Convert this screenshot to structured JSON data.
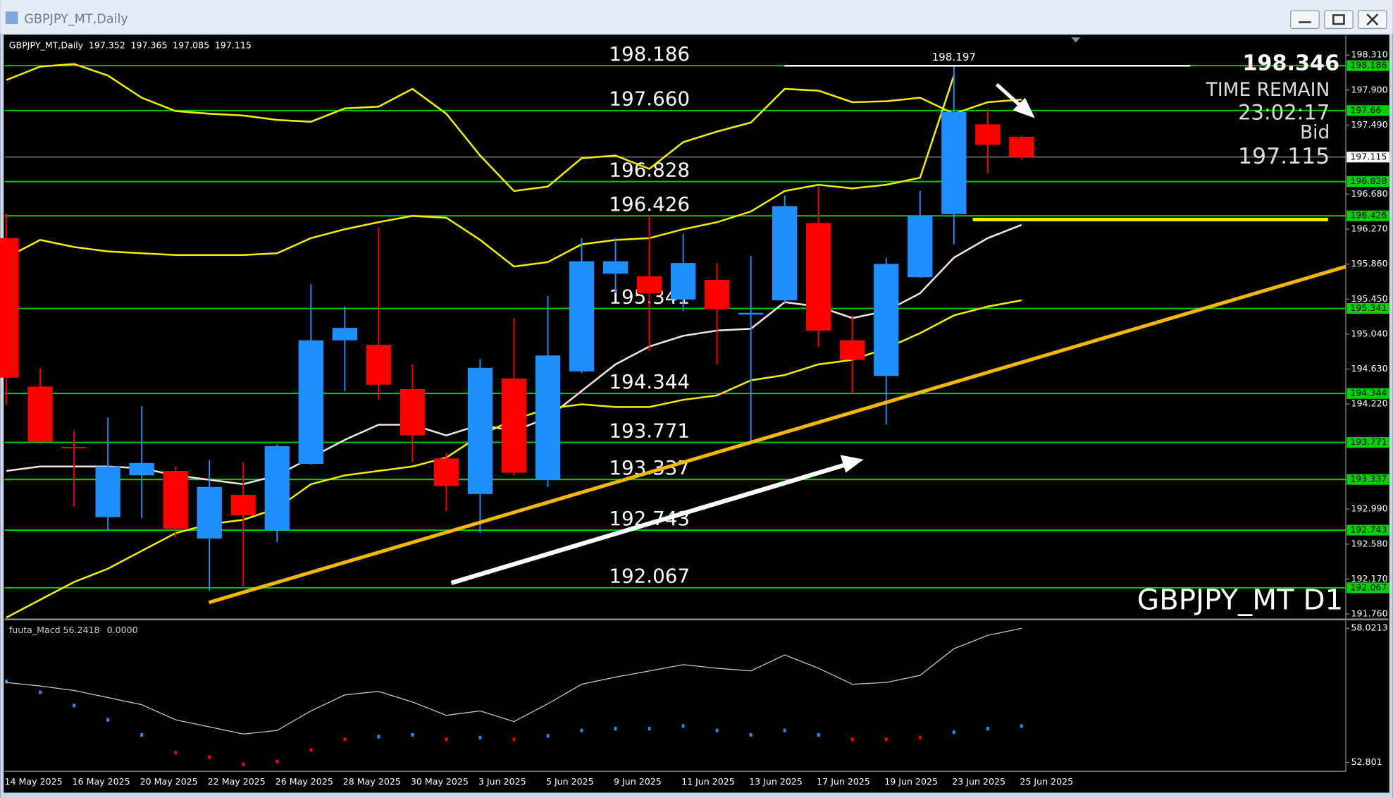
{
  "window_title": "GBPJPY_MT,Daily",
  "chart_data": [
    {
      "type": "candlestick",
      "title": "GBPJPY_MT,Daily",
      "categories": [
        "14 May 2025",
        null,
        "16 May 2025",
        null,
        "20 May 2025",
        null,
        "22 May 2025",
        null,
        "26 May 2025",
        null,
        "28 May 2025",
        null,
        "30 May 2025",
        null,
        "3 Jun 2025",
        null,
        "5 Jun 2025",
        null,
        "9 Jun 2025",
        null,
        "11 Jun 2025",
        null,
        "13 Jun 2025",
        null,
        "17 Jun 2025",
        null,
        "19 Jun 2025",
        null,
        "23 Jun 2025",
        null,
        "25 Jun 2025"
      ],
      "open": [
        196.165,
        194.426,
        193.718,
        192.895,
        193.385,
        193.437,
        192.645,
        193.156,
        192.739,
        193.52,
        194.967,
        194.915,
        194.395,
        193.583,
        193.166,
        194.52,
        193.333,
        194.603,
        195.748,
        195.717,
        195.446,
        195.676,
        195.269,
        195.436,
        196.342,
        194.967,
        194.551,
        195.707,
        196.446,
        197.498,
        197.352
      ],
      "high": [
        196.456,
        194.634,
        193.905,
        194.062,
        194.197,
        193.489,
        193.562,
        193.541,
        193.749,
        195.623,
        195.363,
        196.29,
        194.686,
        193.645,
        194.749,
        195.228,
        195.488,
        196.165,
        196.165,
        196.425,
        196.217,
        195.873,
        195.957,
        196.665,
        196.769,
        195.259,
        195.936,
        196.717,
        198.197,
        197.685,
        197.365
      ],
      "low": [
        194.218,
        193.749,
        193.02,
        192.739,
        192.885,
        192.656,
        192.031,
        192.083,
        192.604,
        193.51,
        194.374,
        194.27,
        193.541,
        192.968,
        192.708,
        193.385,
        193.249,
        194.582,
        195.519,
        194.842,
        195.311,
        194.686,
        193.749,
        195.394,
        194.894,
        194.343,
        193.978,
        195.7,
        196.092,
        196.925,
        197.085
      ],
      "close": [
        194.53,
        193.78,
        193.708,
        193.489,
        193.53,
        192.76,
        193.249,
        192.916,
        193.728,
        194.967,
        195.113,
        194.447,
        193.853,
        193.26,
        194.645,
        193.416,
        194.79,
        195.894,
        195.894,
        195.519,
        195.873,
        195.332,
        195.29,
        196.54,
        195.082,
        194.738,
        195.863,
        196.425,
        197.644,
        197.258,
        197.115
      ],
      "up_color": "#1e8fff",
      "down_color": "#ff0000",
      "overlays": [
        {
          "color": "#f2e4e4",
          "values": [
            193.437,
            193.489,
            193.489,
            193.489,
            193.468,
            193.385,
            193.333,
            193.281,
            193.385,
            193.593,
            193.801,
            193.978,
            193.978,
            193.853,
            193.978,
            193.905,
            194.061,
            194.374,
            194.686,
            194.895,
            195.02,
            195.082,
            195.103,
            195.415,
            195.363,
            195.228,
            195.311,
            195.519,
            195.936,
            196.165,
            196.321
          ]
        },
        {
          "color": "#f0f000",
          "values": [
            198.018,
            198.175,
            198.206,
            198.07,
            197.81,
            197.654,
            197.623,
            197.602,
            197.55,
            197.529,
            197.685,
            197.706,
            197.914,
            197.623,
            197.133,
            196.717,
            196.769,
            197.102,
            197.133,
            196.977,
            197.29,
            197.414,
            197.519,
            197.914,
            197.893,
            197.758,
            197.769,
            197.81,
            197.623,
            197.758,
            197.789
          ]
        },
        {
          "color": "#f0f000",
          "values": [
            195.936,
            196.144,
            196.061,
            196.009,
            195.988,
            195.967,
            195.967,
            195.967,
            195.988,
            196.165,
            196.269,
            196.352,
            196.425,
            196.404,
            196.144,
            195.832,
            195.884,
            196.092,
            196.144,
            196.165,
            196.269,
            196.352,
            196.477,
            196.717,
            196.79,
            196.748,
            196.79,
            196.873,
            198.07,
            null,
            null
          ]
        },
        {
          "color": "#f0f000",
          "values": [
            191.719,
            191.927,
            192.135,
            192.291,
            192.5,
            192.708,
            192.812,
            192.864,
            192.999,
            193.281,
            193.385,
            193.437,
            193.489,
            193.593,
            193.853,
            194.041,
            194.166,
            194.218,
            194.186,
            194.186,
            194.27,
            194.322,
            194.499,
            194.561,
            194.686,
            194.738,
            194.874,
            195.051,
            195.259,
            195.363,
            195.436
          ]
        }
      ],
      "levels": [
        198.186,
        197.66,
        196.828,
        196.426,
        195.341,
        194.344,
        193.771,
        193.337,
        192.743,
        192.067
      ],
      "level_labels": [
        "198.186",
        "197.660",
        "196.828",
        "196.426",
        "195.341",
        "194.344",
        "193.771",
        "193.337",
        "192.743",
        "192.067"
      ],
      "level_color": "#00d200",
      "ylim": [
        191.718,
        198.539
      ],
      "yticks": [
        {
          "value": 198.31,
          "label": "198.310"
        },
        {
          "value": 197.9,
          "label": "197.900"
        },
        {
          "value": 197.49,
          "label": "197.490"
        },
        {
          "value": 196.68,
          "label": "196.680"
        },
        {
          "value": 196.27,
          "label": "196.270"
        },
        {
          "value": 195.86,
          "label": "195.860"
        },
        {
          "value": 195.45,
          "label": "195.450"
        },
        {
          "value": 195.04,
          "label": "195.040"
        },
        {
          "value": 194.63,
          "label": "194.630"
        },
        {
          "value": 194.22,
          "label": "194.220"
        },
        {
          "value": 192.99,
          "label": "192.990"
        },
        {
          "value": 192.58,
          "label": "192.580"
        },
        {
          "value": 192.17,
          "label": "192.170"
        },
        {
          "value": 191.76,
          "label": "191.760"
        }
      ],
      "bid": 197.115,
      "bid_label": "Bid",
      "header_price": 198.346,
      "time_remain_label": "TIME REMAIN",
      "time_remain": "23:02:17",
      "watermark": "GBPJPY_MT D1"
    },
    {
      "type": "indicator",
      "title": "fuuta_Macd",
      "readings": [
        56.2418,
        {
          "value": 0,
          "label": "0.0000"
        }
      ],
      "ylim": [
        52.455,
        58.298
      ],
      "yticks": [
        58.0213,
        52.801
      ],
      "line": {
        "color": "#c8c8c8",
        "values": [
          55.912,
          55.774,
          55.601,
          55.325,
          55.048,
          54.46,
          54.184,
          53.907,
          54.046,
          54.806,
          55.428,
          55.567,
          55.152,
          54.633,
          54.806,
          54.391,
          55.083,
          55.843,
          56.12,
          56.362,
          56.604,
          56.466,
          56.362,
          56.984,
          56.466,
          55.843,
          55.912,
          56.189,
          57.226,
          57.745,
          58.021
        ]
      },
      "histogram": {
        "values": [
          56.016,
          55.601,
          55.083,
          54.53,
          53.942,
          53.25,
          53.077,
          52.801,
          52.905,
          53.354,
          53.769,
          53.873,
          53.942,
          53.769,
          53.838,
          53.769,
          53.907,
          54.115,
          54.184,
          54.184,
          54.287,
          54.115,
          53.942,
          54.115,
          53.942,
          53.769,
          53.769,
          53.838,
          54.046,
          54.184,
          54.287
        ],
        "colors": [
          "#1e8fff",
          "#1e8fff",
          "#1e8fff",
          "#1e8fff",
          "#1e8fff",
          "#ff0000",
          "#ff0000",
          "#ff0000",
          "#ff0000",
          "#ff0000",
          "#ff0000",
          "#1e8fff",
          "#1e8fff",
          "#ff0000",
          "#1e8fff",
          "#ff0000",
          "#1e8fff",
          "#1e8fff",
          "#1e8fff",
          "#1e8fff",
          "#1e8fff",
          "#1e8fff",
          "#1e8fff",
          "#1e8fff",
          "#1e8fff",
          "#ff0000",
          "#ff0000",
          "#ff0000",
          "#1e8fff",
          "#1e8fff",
          "#1e8fff"
        ]
      }
    }
  ]
}
